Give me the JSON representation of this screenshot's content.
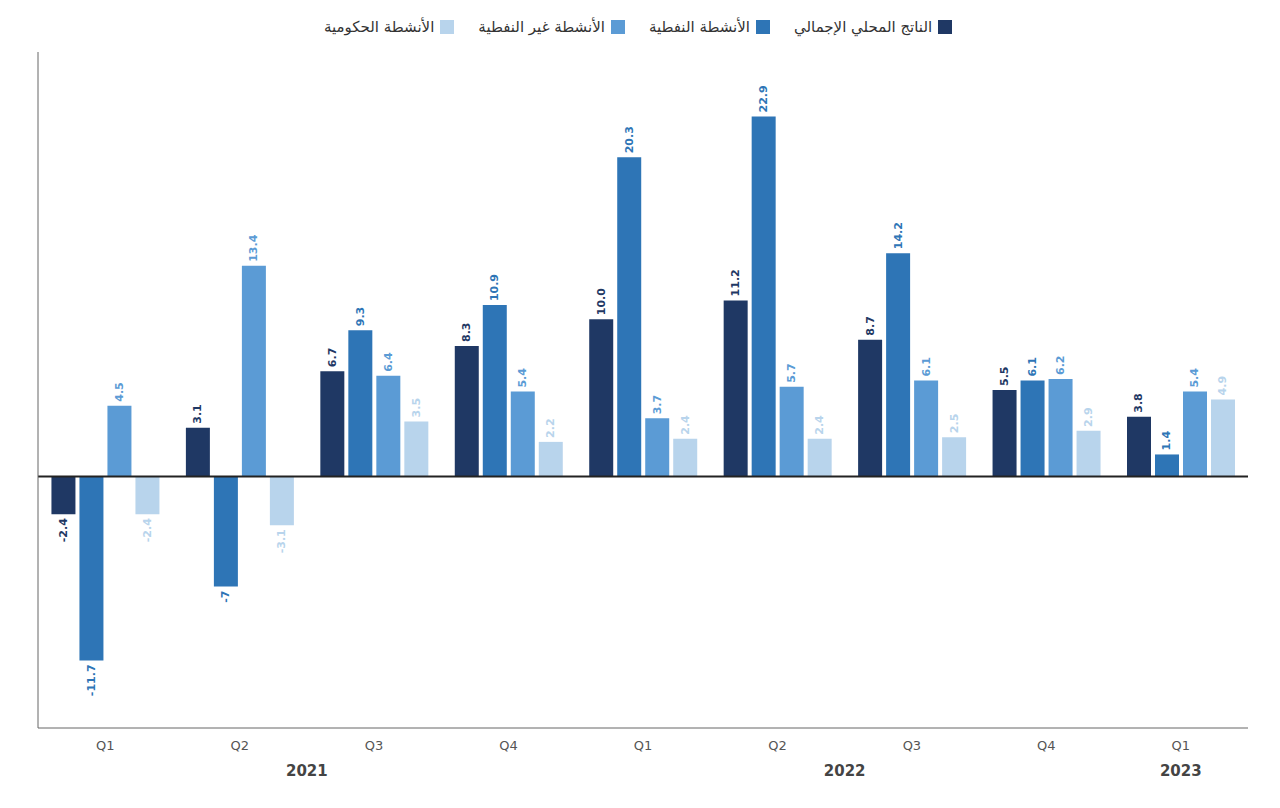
{
  "chart_data": {
    "type": "bar",
    "categories": [
      "Q1",
      "Q2",
      "Q3",
      "Q4",
      "Q1",
      "Q2",
      "Q3",
      "Q4",
      "Q1"
    ],
    "years": [
      "2021",
      "2021",
      "2021",
      "2021",
      "2022",
      "2022",
      "2022",
      "2022",
      "2023"
    ],
    "series": [
      {
        "name": "الناتج المحلي الإجمالي",
        "color": "#1f3864",
        "values": [
          -2.4,
          3.1,
          6.7,
          8.3,
          10.0,
          11.2,
          8.7,
          5.5,
          3.8
        ],
        "value_labels": [
          "-2.4",
          "3.1",
          "6.7",
          "8.3",
          "10.0",
          "11.2",
          "8.7",
          "5.5",
          "3.8"
        ]
      },
      {
        "name": "الأنشطة النفطية",
        "color": "#2e75b6",
        "values": [
          -11.7,
          -7.0,
          9.3,
          10.9,
          20.3,
          22.9,
          14.2,
          6.1,
          1.4
        ]
      },
      {
        "name": "الأنشطة غير النفطية",
        "color": "#5b9bd5",
        "values": [
          4.5,
          13.4,
          6.4,
          5.4,
          3.7,
          5.7,
          6.1,
          6.2,
          5.4
        ]
      },
      {
        "name": "الأنشطة الحكومية",
        "color": "#b8d4ec",
        "values": [
          -2.4,
          -3.1,
          3.5,
          2.2,
          2.4,
          2.4,
          2.5,
          2.9,
          4.9
        ]
      }
    ],
    "ylim": [
      -16,
      27
    ],
    "grid": false,
    "legend": "top",
    "data_labels": true,
    "tick_labels": "x"
  }
}
